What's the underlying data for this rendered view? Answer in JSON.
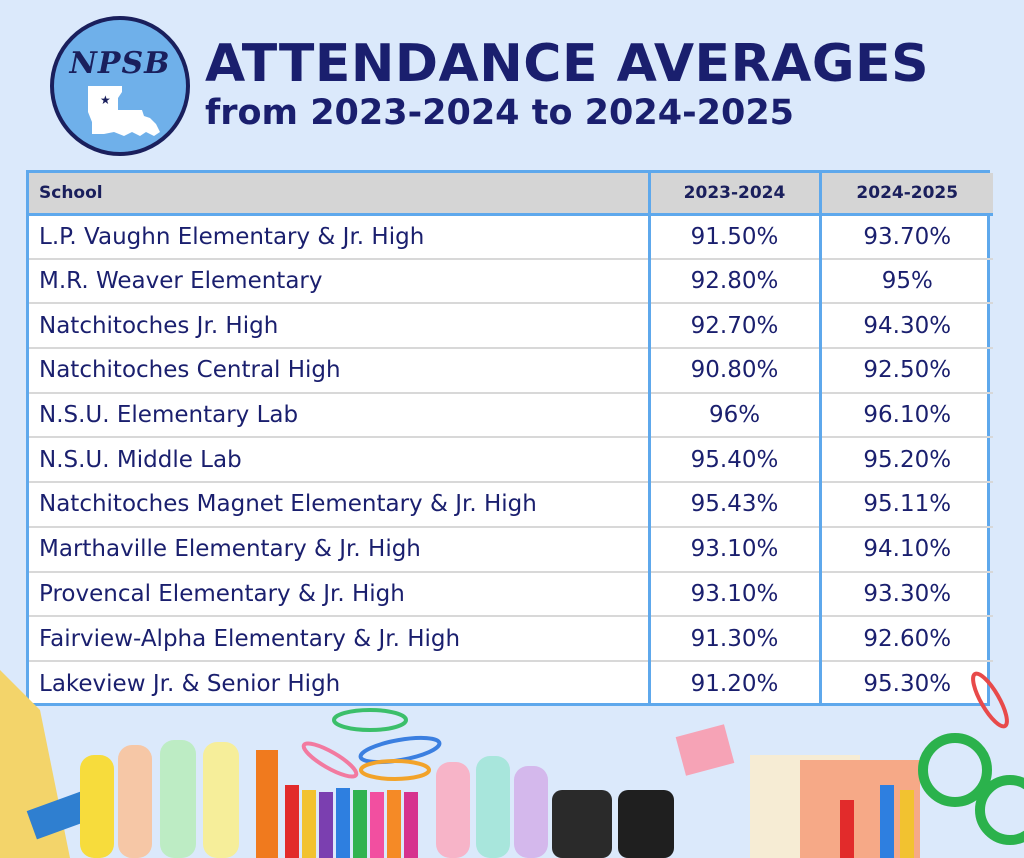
{
  "logo": {
    "text": "NPSB",
    "icon": "louisiana-state-outline-icon"
  },
  "header": {
    "title": "ATTENDANCE AVERAGES",
    "subtitle": "from 2023-2024 to 2024-2025"
  },
  "table": {
    "columns": [
      "School",
      "2023-2024",
      "2024-2025"
    ],
    "rows": [
      {
        "school": "L.P. Vaughn Elementary & Jr. High",
        "y2023": "91.50%",
        "y2024": "93.70%"
      },
      {
        "school": "M.R. Weaver Elementary",
        "y2023": "92.80%",
        "y2024": "95%"
      },
      {
        "school": "Natchitoches Jr. High",
        "y2023": "92.70%",
        "y2024": "94.30%"
      },
      {
        "school": "Natchitoches Central High",
        "y2023": "90.80%",
        "y2024": "92.50%"
      },
      {
        "school": "N.S.U. Elementary Lab",
        "y2023": "96%",
        "y2024": "96.10%"
      },
      {
        "school": "N.S.U. Middle Lab",
        "y2023": "95.40%",
        "y2024": "95.20%"
      },
      {
        "school": "Natchitoches Magnet Elementary & Jr. High",
        "y2023": "95.43%",
        "y2024": "95.11%"
      },
      {
        "school": "Marthaville Elementary & Jr. High",
        "y2023": "93.10%",
        "y2024": "94.10%"
      },
      {
        "school": "Provencal Elementary & Jr. High",
        "y2023": "93.10%",
        "y2024": "93.30%"
      },
      {
        "school": "Fairview-Alpha Elementary & Jr. High",
        "y2023": "91.30%",
        "y2024": "92.60%"
      },
      {
        "school": "Lakeview Jr. & Senior High",
        "y2023": "91.20%",
        "y2024": "95.30%"
      }
    ]
  },
  "colors": {
    "background": "#dbe9fb",
    "title": "#1a1f6e",
    "table_border": "#5ea8ec",
    "header_bg": "#d5d5d5",
    "logo_fill": "#6fb0ea"
  },
  "decoration": {
    "icon": "school-supplies-illustration"
  }
}
